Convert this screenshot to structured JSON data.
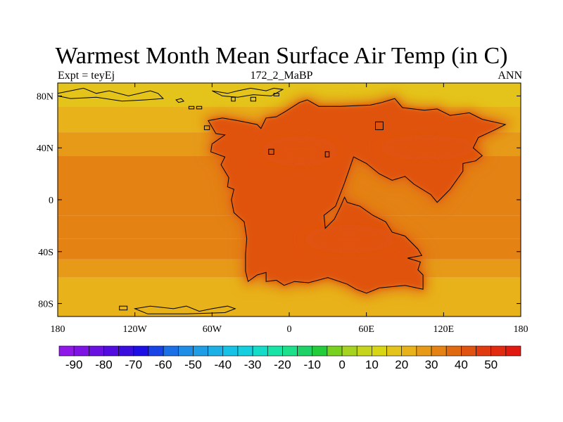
{
  "title": "Warmest Month Mean Surface Air Temp (in C)",
  "subtitle_left": "Expt = teyEj",
  "subtitle_center": "172_2_MaBP",
  "subtitle_right": "ANN",
  "map": {
    "lon_range": [
      -180,
      180
    ],
    "lat_range": [
      -90,
      90
    ],
    "lon_ticks": [
      {
        "value": -180,
        "label": "180"
      },
      {
        "value": -120,
        "label": "120W"
      },
      {
        "value": -60,
        "label": "60W"
      },
      {
        "value": 0,
        "label": "0"
      },
      {
        "value": 60,
        "label": "60E"
      },
      {
        "value": 120,
        "label": "120E"
      },
      {
        "value": 180,
        "label": "180"
      }
    ],
    "lat_ticks": [
      {
        "value": 80,
        "label": "80N"
      },
      {
        "value": 40,
        "label": "40N"
      },
      {
        "value": 0,
        "label": "0"
      },
      {
        "value": -40,
        "label": "40S"
      },
      {
        "value": -80,
        "label": "80S"
      }
    ],
    "ocean_bands": [
      {
        "lat_from": 90,
        "lat_to": 72,
        "value": 14
      },
      {
        "lat_from": 72,
        "lat_to": 52,
        "value": 20
      },
      {
        "lat_from": 52,
        "lat_to": 34,
        "value": 24
      },
      {
        "lat_from": 34,
        "lat_to": -12,
        "value": 30
      },
      {
        "lat_from": -12,
        "lat_to": -30,
        "value": 34
      },
      {
        "lat_from": -30,
        "lat_to": -46,
        "value": 30
      },
      {
        "lat_from": -46,
        "lat_to": -60,
        "value": 25
      },
      {
        "lat_from": -60,
        "lat_to": -90,
        "value": 20
      }
    ],
    "continent_fill_value": 42,
    "interior_hot_value": 44,
    "coast_fill_value": 37,
    "coastline_lonlat": [
      [
        -63,
        61
      ],
      [
        -57,
        51
      ],
      [
        -50,
        50
      ],
      [
        -60,
        43
      ],
      [
        -61,
        37
      ],
      [
        -50,
        33
      ],
      [
        -53,
        27
      ],
      [
        -47,
        17
      ],
      [
        -48,
        10
      ],
      [
        -43,
        8
      ],
      [
        -45,
        0
      ],
      [
        -43,
        -10
      ],
      [
        -35,
        -17
      ],
      [
        -33,
        -30
      ],
      [
        -34,
        -42
      ],
      [
        -34,
        -55
      ],
      [
        -32,
        -63
      ],
      [
        -25,
        -58
      ],
      [
        -18,
        -56
      ],
      [
        -18,
        -63
      ],
      [
        -10,
        -62
      ],
      [
        -4,
        -66
      ],
      [
        4,
        -63
      ],
      [
        15,
        -64
      ],
      [
        30,
        -60
      ],
      [
        45,
        -65
      ],
      [
        52,
        -69
      ],
      [
        60,
        -72
      ],
      [
        70,
        -68
      ],
      [
        90,
        -66
      ],
      [
        104,
        -69
      ],
      [
        104,
        -58
      ],
      [
        100,
        -54
      ],
      [
        102,
        -48
      ],
      [
        92,
        -45
      ],
      [
        103,
        -43
      ],
      [
        100,
        -38
      ],
      [
        90,
        -28
      ],
      [
        80,
        -25
      ],
      [
        75,
        -17
      ],
      [
        65,
        -12
      ],
      [
        55,
        -5
      ],
      [
        45,
        -2
      ],
      [
        43,
        2
      ],
      [
        40,
        -5
      ],
      [
        35,
        -15
      ],
      [
        28,
        -22
      ],
      [
        27,
        -12
      ],
      [
        36,
        -5
      ],
      [
        43,
        13
      ],
      [
        50,
        33
      ],
      [
        60,
        28
      ],
      [
        70,
        20
      ],
      [
        80,
        15
      ],
      [
        90,
        18
      ],
      [
        97,
        12
      ],
      [
        110,
        4
      ],
      [
        115,
        -2
      ],
      [
        125,
        8
      ],
      [
        135,
        22
      ],
      [
        135,
        28
      ],
      [
        145,
        30
      ],
      [
        150,
        34
      ],
      [
        143,
        40
      ],
      [
        147,
        48
      ],
      [
        160,
        54
      ],
      [
        168,
        58
      ],
      [
        150,
        62
      ],
      [
        140,
        67
      ],
      [
        125,
        65
      ],
      [
        115,
        70
      ],
      [
        105,
        69
      ],
      [
        88,
        71
      ],
      [
        82,
        78
      ],
      [
        72,
        75
      ],
      [
        63,
        73
      ],
      [
        40,
        72
      ],
      [
        23,
        72
      ],
      [
        14,
        77
      ],
      [
        8,
        75
      ],
      [
        -3,
        68
      ],
      [
        -10,
        64
      ],
      [
        -18,
        63
      ],
      [
        -22,
        55
      ],
      [
        -25,
        58
      ],
      [
        -40,
        61
      ],
      [
        -52,
        63
      ],
      [
        -63,
        61
      ]
    ],
    "island_outlines": [
      [
        [
          -180,
          82
        ],
        [
          -170,
          84
        ],
        [
          -160,
          86
        ],
        [
          -150,
          82
        ],
        [
          -140,
          84
        ],
        [
          -125,
          80
        ],
        [
          -108,
          84
        ],
        [
          -102,
          82
        ],
        [
          -98,
          78
        ],
        [
          -112,
          77
        ],
        [
          -130,
          76
        ],
        [
          -150,
          79
        ],
        [
          -170,
          78
        ],
        [
          -180,
          80
        ]
      ],
      [
        [
          -60,
          84
        ],
        [
          -48,
          82
        ],
        [
          -40,
          84
        ],
        [
          -30,
          86
        ],
        [
          -18,
          84
        ],
        [
          -12,
          86
        ],
        [
          -5,
          85
        ],
        [
          -14,
          80
        ],
        [
          -28,
          81
        ],
        [
          -40,
          79
        ],
        [
          -52,
          80
        ],
        [
          -60,
          84
        ]
      ],
      [
        [
          -88,
          77
        ],
        [
          -84,
          78
        ],
        [
          -82,
          76
        ],
        [
          -86,
          75
        ],
        [
          -88,
          77
        ]
      ],
      [
        [
          -78,
          72
        ],
        [
          -74,
          72
        ],
        [
          -74,
          70
        ],
        [
          -78,
          70
        ],
        [
          -78,
          72
        ]
      ],
      [
        [
          -72,
          72
        ],
        [
          -68,
          72
        ],
        [
          -68,
          70
        ],
        [
          -72,
          70
        ],
        [
          -72,
          72
        ]
      ],
      [
        [
          -66,
          57
        ],
        [
          -62,
          57
        ],
        [
          -62,
          54
        ],
        [
          -66,
          54
        ],
        [
          -66,
          57
        ]
      ],
      [
        [
          -45,
          79
        ],
        [
          -42,
          79
        ],
        [
          -42,
          76
        ],
        [
          -45,
          76
        ],
        [
          -45,
          79
        ]
      ],
      [
        [
          -12,
          82
        ],
        [
          -8,
          82
        ],
        [
          -8,
          80
        ],
        [
          -12,
          80
        ],
        [
          -12,
          82
        ]
      ],
      [
        [
          -30,
          79
        ],
        [
          -26,
          79
        ],
        [
          -26,
          76
        ],
        [
          -30,
          76
        ],
        [
          -30,
          79
        ]
      ],
      [
        [
          67,
          60
        ],
        [
          73,
          60
        ],
        [
          73,
          54
        ],
        [
          67,
          54
        ],
        [
          67,
          60
        ]
      ],
      [
        [
          -16,
          39
        ],
        [
          -12,
          39
        ],
        [
          -12,
          35
        ],
        [
          -16,
          35
        ],
        [
          -16,
          39
        ]
      ],
      [
        [
          28,
          37
        ],
        [
          31,
          37
        ],
        [
          31,
          33
        ],
        [
          28,
          33
        ],
        [
          28,
          37
        ]
      ],
      [
        [
          -120,
          -84
        ],
        [
          -108,
          -82
        ],
        [
          -90,
          -84
        ],
        [
          -80,
          -82
        ],
        [
          -70,
          -86
        ],
        [
          -60,
          -84
        ],
        [
          -48,
          -82
        ],
        [
          -42,
          -84
        ],
        [
          -50,
          -87
        ],
        [
          -80,
          -88
        ],
        [
          -110,
          -88
        ],
        [
          -120,
          -84
        ]
      ],
      [
        [
          -132,
          -82
        ],
        [
          -126,
          -82
        ],
        [
          -126,
          -85
        ],
        [
          -132,
          -85
        ],
        [
          -132,
          -82
        ]
      ]
    ]
  },
  "colorbar": {
    "labels": [
      "-90",
      "-80",
      "-70",
      "-60",
      "-50",
      "-40",
      "-30",
      "-20",
      "-10",
      "0",
      "10",
      "20",
      "30",
      "40",
      "50"
    ],
    "colors": [
      "#8f18e8",
      "#7d14e4",
      "#6a10e0",
      "#520ce0",
      "#3a0cde",
      "#1e0ee6",
      "#1844e6",
      "#1c70e6",
      "#1f8de6",
      "#1f9ee6",
      "#1cb0e6",
      "#18c2e6",
      "#16cfde",
      "#14dcc8",
      "#18e4a8",
      "#1de08a",
      "#1ed268",
      "#22cc3a",
      "#78d020",
      "#a6d220",
      "#c6d41c",
      "#d8d614",
      "#e4c41a",
      "#e8b21a",
      "#e69a18",
      "#e48214",
      "#e06a12",
      "#e05210",
      "#e03a10",
      "#e22a10",
      "#e01a10"
    ]
  }
}
